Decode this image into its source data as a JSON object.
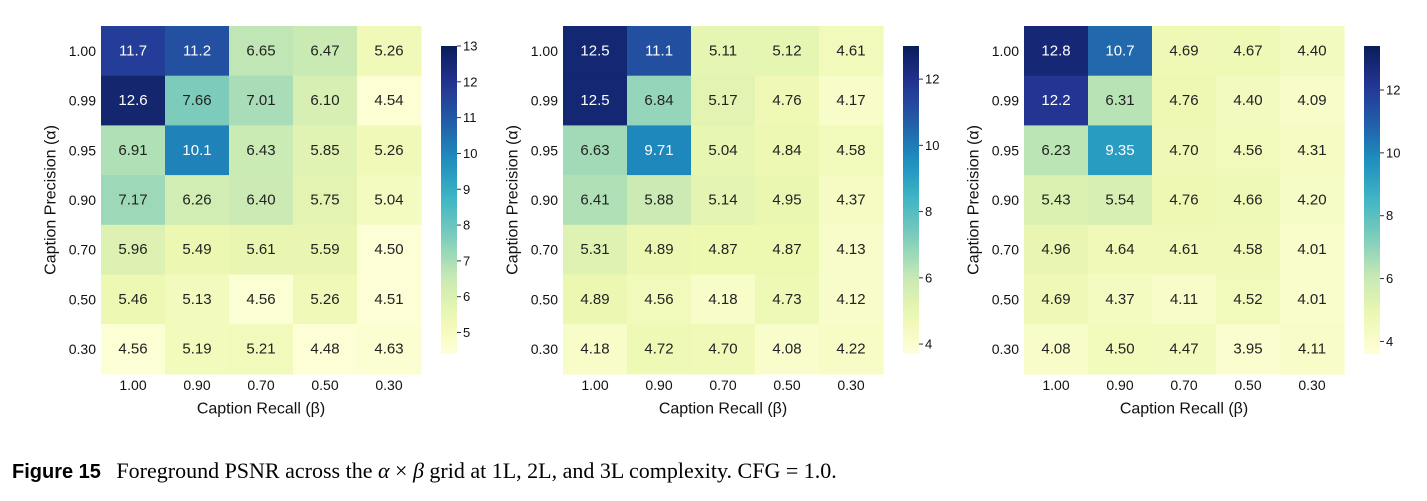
{
  "caption": {
    "label": "Figure 15",
    "text_pre": "Foreground PSNR across the",
    "alpha": "α",
    "times": "×",
    "beta": "β",
    "text_post": "grid at 1L, 2L, and 3L complexity. CFG = 1.0."
  },
  "colormap": {
    "name": "YlGnBu",
    "stops": [
      "#ffffd9",
      "#edf8b1",
      "#c7e9b4",
      "#7fcdbb",
      "#41b6c4",
      "#1d91c0",
      "#225ea8",
      "#253494",
      "#081d58"
    ]
  },
  "chart_data": [
    {
      "type": "heatmap",
      "xlabel": "Caption Recall (β)",
      "ylabel": "Caption Precision (α)",
      "x_categories": [
        "1.00",
        "0.90",
        "0.70",
        "0.50",
        "0.30"
      ],
      "y_categories": [
        "1.00",
        "0.99",
        "0.95",
        "0.90",
        "0.70",
        "0.50",
        "0.30"
      ],
      "values": [
        [
          "11.7",
          "11.2",
          "6.65",
          "6.47",
          "5.26"
        ],
        [
          "12.6",
          "7.66",
          "7.01",
          "6.10",
          "4.54"
        ],
        [
          "6.91",
          "10.1",
          "6.43",
          "5.85",
          "5.26"
        ],
        [
          "7.17",
          "6.26",
          "6.40",
          "5.75",
          "5.04"
        ],
        [
          "5.96",
          "5.49",
          "5.61",
          "5.59",
          "4.50"
        ],
        [
          "5.46",
          "5.13",
          "4.56",
          "5.26",
          "4.51"
        ],
        [
          "4.56",
          "5.19",
          "5.21",
          "4.48",
          "4.63"
        ]
      ],
      "colorbar": {
        "vmin": 4.4,
        "vmax": 13.0,
        "ticks": [
          "5",
          "6",
          "7",
          "8",
          "9",
          "10",
          "11",
          "12",
          "13"
        ]
      }
    },
    {
      "type": "heatmap",
      "xlabel": "Caption Recall (β)",
      "ylabel": "Caption Precision (α)",
      "x_categories": [
        "1.00",
        "0.90",
        "0.70",
        "0.50",
        "0.30"
      ],
      "y_categories": [
        "1.00",
        "0.99",
        "0.95",
        "0.90",
        "0.70",
        "0.50",
        "0.30"
      ],
      "values": [
        [
          "12.5",
          "11.1",
          "5.11",
          "5.12",
          "4.61"
        ],
        [
          "12.5",
          "6.84",
          "5.17",
          "4.76",
          "4.17"
        ],
        [
          "6.63",
          "9.71",
          "5.04",
          "4.84",
          "4.58"
        ],
        [
          "6.41",
          "5.88",
          "5.14",
          "4.95",
          "4.37"
        ],
        [
          "5.31",
          "4.89",
          "4.87",
          "4.87",
          "4.13"
        ],
        [
          "4.89",
          "4.56",
          "4.18",
          "4.73",
          "4.12"
        ],
        [
          "4.18",
          "4.72",
          "4.70",
          "4.08",
          "4.22"
        ]
      ],
      "colorbar": {
        "vmin": 3.7,
        "vmax": 13.0,
        "ticks": [
          "4",
          "6",
          "8",
          "10",
          "12"
        ]
      }
    },
    {
      "type": "heatmap",
      "xlabel": "Caption Recall (β)",
      "ylabel": "Caption Precision (α)",
      "x_categories": [
        "1.00",
        "0.90",
        "0.70",
        "0.50",
        "0.30"
      ],
      "y_categories": [
        "1.00",
        "0.99",
        "0.95",
        "0.90",
        "0.70",
        "0.50",
        "0.30"
      ],
      "values": [
        [
          "12.8",
          "10.7",
          "4.69",
          "4.67",
          "4.40"
        ],
        [
          "12.2",
          "6.31",
          "4.76",
          "4.40",
          "4.09"
        ],
        [
          "6.23",
          "9.35",
          "4.70",
          "4.56",
          "4.31"
        ],
        [
          "5.43",
          "5.54",
          "4.76",
          "4.66",
          "4.20"
        ],
        [
          "4.96",
          "4.64",
          "4.61",
          "4.58",
          "4.01"
        ],
        [
          "4.69",
          "4.37",
          "4.11",
          "4.52",
          "4.01"
        ],
        [
          "4.08",
          "4.50",
          "4.47",
          "3.95",
          "4.11"
        ]
      ],
      "colorbar": {
        "vmin": 3.6,
        "vmax": 13.4,
        "ticks": [
          "4",
          "6",
          "8",
          "10",
          "12"
        ]
      }
    }
  ]
}
